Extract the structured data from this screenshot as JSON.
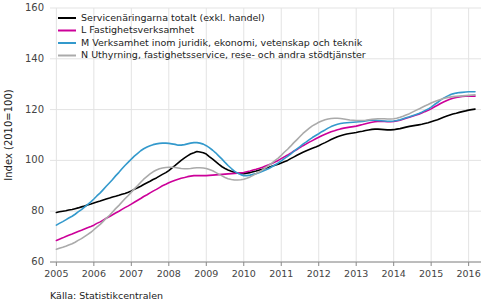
{
  "chart_data": {
    "type": "line",
    "y_label": "Index (2010=100)",
    "annotations": [
      "Källa: Statistikcentralen"
    ],
    "xlim": [
      2004.83,
      2016.33
    ],
    "xticks": [
      2005,
      2006,
      2007,
      2008,
      2009,
      2010,
      2011,
      2012,
      2013,
      2014,
      2015,
      2016
    ],
    "ylim": [
      60,
      160
    ],
    "yticks": [
      60,
      80,
      100,
      120,
      140,
      160
    ],
    "grid": true,
    "legend": "upper left",
    "x": [
      2005.0,
      2005.08,
      2005.17,
      2005.25,
      2005.33,
      2005.42,
      2005.5,
      2005.58,
      2005.67,
      2005.75,
      2005.83,
      2005.92,
      2006.0,
      2006.08,
      2006.17,
      2006.25,
      2006.33,
      2006.42,
      2006.5,
      2006.58,
      2006.67,
      2006.75,
      2006.83,
      2006.92,
      2007.0,
      2007.08,
      2007.17,
      2007.25,
      2007.33,
      2007.42,
      2007.5,
      2007.58,
      2007.67,
      2007.75,
      2007.83,
      2007.92,
      2008.0,
      2008.08,
      2008.17,
      2008.25,
      2008.33,
      2008.42,
      2008.5,
      2008.58,
      2008.67,
      2008.75,
      2008.83,
      2008.92,
      2009.0,
      2009.08,
      2009.17,
      2009.25,
      2009.33,
      2009.42,
      2009.5,
      2009.58,
      2009.67,
      2009.75,
      2009.83,
      2009.92,
      2010.0,
      2010.08,
      2010.17,
      2010.25,
      2010.33,
      2010.42,
      2010.5,
      2010.58,
      2010.67,
      2010.75,
      2010.83,
      2010.92,
      2011.0,
      2011.08,
      2011.17,
      2011.25,
      2011.33,
      2011.42,
      2011.5,
      2011.58,
      2011.67,
      2011.75,
      2011.83,
      2011.92,
      2012.0,
      2012.08,
      2012.17,
      2012.25,
      2012.33,
      2012.42,
      2012.5,
      2012.58,
      2012.67,
      2012.75,
      2012.83,
      2012.92,
      2013.0,
      2013.08,
      2013.17,
      2013.25,
      2013.33,
      2013.42,
      2013.5,
      2013.58,
      2013.67,
      2013.75,
      2013.83,
      2013.92,
      2014.0,
      2014.08,
      2014.17,
      2014.25,
      2014.33,
      2014.42,
      2014.5,
      2014.58,
      2014.67,
      2014.75,
      2014.83,
      2014.92,
      2015.0,
      2015.08,
      2015.17,
      2015.25,
      2015.33,
      2015.42,
      2015.5,
      2015.58,
      2015.67,
      2015.75,
      2015.83,
      2015.92,
      2016.0,
      2016.08,
      2016.17
    ],
    "series": [
      {
        "name": "Servicenäringarna totalt (exkl. handel)",
        "color": "#000000",
        "values": [
          79.5,
          79.8,
          80.0,
          80.2,
          80.5,
          80.7,
          81.0,
          81.3,
          81.7,
          82.0,
          82.4,
          82.8,
          83.2,
          83.6,
          84.0,
          84.4,
          84.8,
          85.2,
          85.6,
          85.9,
          86.3,
          86.7,
          87.0,
          87.5,
          88.0,
          88.6,
          89.2,
          89.8,
          90.5,
          91.2,
          91.8,
          92.5,
          93.1,
          93.8,
          94.5,
          95.2,
          96.0,
          97.0,
          98.0,
          99.0,
          100.0,
          101.0,
          101.8,
          102.5,
          103.0,
          103.5,
          103.3,
          103.0,
          102.5,
          101.5,
          100.5,
          99.5,
          98.5,
          97.5,
          96.8,
          96.2,
          95.7,
          95.3,
          95.0,
          94.9,
          94.8,
          95.0,
          95.2,
          95.5,
          95.8,
          96.2,
          96.5,
          96.9,
          97.3,
          97.7,
          98.1,
          98.5,
          99.0,
          99.5,
          100.0,
          100.7,
          101.3,
          102.0,
          102.6,
          103.2,
          103.8,
          104.3,
          104.8,
          105.3,
          105.8,
          106.4,
          107.0,
          107.6,
          108.2,
          108.8,
          109.3,
          109.7,
          110.1,
          110.4,
          110.6,
          110.8,
          111.0,
          111.3,
          111.5,
          111.8,
          112.0,
          112.2,
          112.3,
          112.3,
          112.2,
          112.1,
          112.0,
          112.0,
          112.1,
          112.3,
          112.5,
          112.8,
          113.1,
          113.4,
          113.6,
          113.8,
          114.0,
          114.2,
          114.5,
          114.8,
          115.2,
          115.6,
          116.0,
          116.5,
          117.0,
          117.5,
          117.9,
          118.3,
          118.6,
          118.9,
          119.2,
          119.5,
          119.8,
          120.0,
          120.2
        ]
      },
      {
        "name": "L Fastighetsverksamhet",
        "color": "#cc0099",
        "values": [
          68.5,
          69.0,
          69.5,
          70.0,
          70.5,
          71.0,
          71.5,
          72.0,
          72.5,
          73.0,
          73.5,
          74.0,
          74.5,
          75.2,
          75.8,
          76.5,
          77.2,
          77.9,
          78.6,
          79.3,
          80.0,
          80.7,
          81.4,
          82.1,
          82.8,
          83.5,
          84.3,
          85.0,
          85.8,
          86.5,
          87.2,
          87.9,
          88.6,
          89.3,
          90.0,
          90.6,
          91.2,
          91.7,
          92.2,
          92.6,
          93.0,
          93.3,
          93.6,
          93.8,
          94.0,
          94.0,
          94.0,
          94.0,
          94.0,
          94.1,
          94.2,
          94.3,
          94.4,
          94.5,
          94.6,
          94.7,
          94.8,
          94.9,
          95.0,
          95.1,
          95.2,
          95.5,
          95.8,
          96.2,
          96.5,
          96.9,
          97.3,
          97.8,
          98.3,
          98.8,
          99.4,
          100.0,
          100.7,
          101.4,
          102.1,
          102.8,
          103.6,
          104.3,
          105.1,
          105.8,
          106.5,
          107.2,
          107.8,
          108.5,
          109.1,
          109.7,
          110.3,
          110.8,
          111.3,
          111.7,
          112.1,
          112.4,
          112.7,
          112.9,
          113.1,
          113.3,
          113.5,
          113.8,
          114.1,
          114.4,
          114.7,
          115.0,
          115.2,
          115.3,
          115.3,
          115.3,
          115.2,
          115.2,
          115.3,
          115.5,
          115.8,
          116.2,
          116.6,
          117.0,
          117.4,
          117.8,
          118.2,
          118.7,
          119.2,
          119.7,
          120.3,
          121.0,
          121.7,
          122.4,
          123.0,
          123.6,
          124.1,
          124.5,
          124.8,
          125.0,
          125.2,
          125.3,
          125.3,
          125.3,
          125.3
        ]
      },
      {
        "name": "M Verksamhet inom juridik, ekonomi, vetenskap och teknik",
        "color": "#3399cc",
        "values": [
          74.5,
          75.2,
          75.9,
          76.6,
          77.3,
          78.0,
          78.8,
          79.7,
          80.6,
          81.6,
          82.6,
          83.7,
          84.8,
          86.0,
          87.2,
          88.5,
          89.8,
          91.2,
          92.5,
          93.9,
          95.3,
          96.7,
          98.0,
          99.3,
          100.5,
          101.7,
          102.8,
          103.8,
          104.6,
          105.3,
          105.8,
          106.2,
          106.5,
          106.7,
          106.8,
          106.8,
          106.7,
          106.5,
          106.3,
          106.0,
          106.0,
          106.2,
          106.5,
          106.8,
          107.0,
          107.0,
          106.8,
          106.4,
          105.8,
          105.0,
          104.0,
          103.0,
          101.8,
          100.5,
          99.2,
          98.0,
          96.8,
          95.8,
          95.0,
          94.4,
          94.0,
          94.0,
          94.2,
          94.5,
          94.8,
          95.2,
          95.7,
          96.2,
          96.8,
          97.5,
          98.2,
          99.0,
          99.8,
          100.7,
          101.6,
          102.5,
          103.5,
          104.5,
          105.4,
          106.4,
          107.3,
          108.2,
          109.0,
          109.8,
          110.5,
          111.3,
          112.0,
          112.7,
          113.3,
          113.8,
          114.2,
          114.5,
          114.7,
          114.8,
          114.9,
          115.0,
          115.1,
          115.2,
          115.3,
          115.5,
          115.7,
          115.8,
          115.8,
          115.7,
          115.6,
          115.5,
          115.4,
          115.4,
          115.5,
          115.7,
          116.0,
          116.4,
          116.8,
          117.2,
          117.6,
          118.0,
          118.5,
          119.0,
          119.6,
          120.2,
          121.0,
          121.9,
          122.8,
          123.7,
          124.5,
          125.2,
          125.8,
          126.2,
          126.5,
          126.7,
          126.8,
          126.9,
          127.0,
          127.0,
          127.0
        ]
      },
      {
        "name": "N Uthyrning, fastighetsservice, rese- och andra stödtjänster",
        "color": "#aaaaaa",
        "values": [
          65.0,
          65.4,
          65.8,
          66.2,
          66.7,
          67.2,
          67.8,
          68.5,
          69.2,
          70.0,
          70.8,
          71.7,
          72.7,
          73.7,
          74.8,
          76.0,
          77.2,
          78.4,
          79.7,
          81.0,
          82.3,
          83.6,
          84.9,
          86.2,
          87.5,
          88.8,
          90.1,
          91.4,
          92.6,
          93.7,
          94.7,
          95.5,
          96.2,
          96.7,
          97.0,
          97.2,
          97.3,
          97.3,
          97.2,
          97.0,
          96.8,
          96.7,
          96.7,
          96.8,
          97.0,
          97.1,
          97.1,
          97.0,
          96.8,
          96.4,
          95.9,
          95.3,
          94.6,
          93.9,
          93.3,
          92.8,
          92.5,
          92.3,
          92.3,
          92.4,
          92.6,
          93.0,
          93.5,
          94.1,
          94.8,
          95.5,
          96.3,
          97.1,
          98.0,
          98.9,
          99.9,
          100.9,
          102.0,
          103.2,
          104.4,
          105.6,
          106.9,
          108.2,
          109.4,
          110.6,
          111.7,
          112.7,
          113.6,
          114.3,
          115.0,
          115.5,
          116.0,
          116.3,
          116.5,
          116.6,
          116.6,
          116.5,
          116.3,
          116.1,
          115.9,
          115.8,
          115.7,
          115.7,
          115.7,
          115.8,
          116.0,
          116.2,
          116.3,
          116.4,
          116.4,
          116.4,
          116.3,
          116.3,
          116.4,
          116.6,
          117.0,
          117.4,
          117.9,
          118.4,
          119.0,
          119.6,
          120.2,
          120.8,
          121.4,
          122.0,
          122.6,
          123.1,
          123.6,
          124.0,
          124.4,
          124.7,
          124.9,
          125.1,
          125.2,
          125.3,
          125.4,
          125.5,
          125.6,
          125.7,
          125.8
        ]
      }
    ]
  }
}
